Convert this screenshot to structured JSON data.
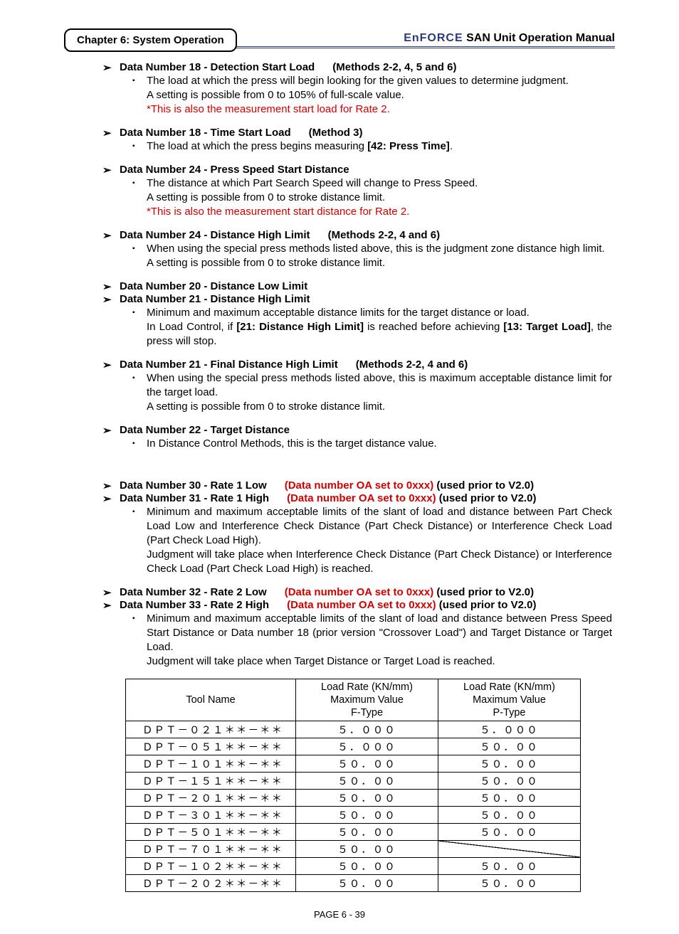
{
  "header": {
    "chapter": "Chapter 6: System Operation",
    "brand": "EnFORCE",
    "title": " SAN  Unit  Operation  Manual"
  },
  "entries": [
    {
      "heads": [
        {
          "label": "Data Number 18 - Detection Start Load",
          "qual": "(Methods 2-2, 4, 5 and 6)"
        }
      ],
      "subs": [
        {
          "bullet": true,
          "html": "The load at which the press will begin looking for the given values to determine judgment."
        },
        {
          "bullet": false,
          "html": "A setting is possible from 0 to 105% of full-scale value."
        },
        {
          "bullet": false,
          "html": "<span class=\"red\">*This is also the measurement start load for Rate 2.</span>"
        }
      ]
    },
    {
      "heads": [
        {
          "label": "Data Number 18 - Time Start Load",
          "qual": "(Method 3)"
        }
      ],
      "subs": [
        {
          "bullet": true,
          "html": "The load at which the press begins measuring <b>[42: Press Time]</b>."
        }
      ]
    },
    {
      "heads": [
        {
          "label": "Data Number 24 - Press Speed Start Distance",
          "qual": ""
        }
      ],
      "subs": [
        {
          "bullet": true,
          "html": "The distance at which Part Search Speed will change to Press Speed."
        },
        {
          "bullet": false,
          "html": "A setting is possible from 0 to stroke distance limit."
        },
        {
          "bullet": false,
          "html": "<span class=\"red\">*This is also the measurement start distance for Rate 2.</span>"
        }
      ]
    },
    {
      "heads": [
        {
          "label": "Data Number 24 - Distance High Limit",
          "qual": "(Methods 2-2, 4 and 6)"
        }
      ],
      "subs": [
        {
          "bullet": true,
          "justify": true,
          "html": "When using the special press methods listed above, this is the judgment zone distance high limit."
        },
        {
          "bullet": false,
          "html": "A setting is possible from 0 to stroke distance limit."
        }
      ]
    },
    {
      "heads": [
        {
          "label": "Data Number 20 - Distance Low Limit",
          "qual": ""
        },
        {
          "label": "Data Number 21 - Distance High Limit",
          "qual": ""
        }
      ],
      "subs": [
        {
          "bullet": true,
          "html": "Minimum and maximum acceptable distance limits for the target distance or load."
        },
        {
          "bullet": false,
          "justify": true,
          "html": "In Load Control, if <b>[21: Distance High Limit]</b> is reached before achieving <b>[13: Target Load]</b>, the press will stop."
        }
      ]
    },
    {
      "heads": [
        {
          "label": "Data Number 21 - Final Distance High Limit",
          "qual": "(Methods 2-2, 4 and 6)"
        }
      ],
      "subs": [
        {
          "bullet": true,
          "justify": true,
          "html": "When using the special press methods listed above, this is maximum acceptable distance limit for the target load."
        },
        {
          "bullet": false,
          "html": "A setting is possible from 0 to stroke distance limit."
        }
      ]
    },
    {
      "heads": [
        {
          "label": "Data Number 22 - Target Distance",
          "qual": ""
        }
      ],
      "subs": [
        {
          "bullet": true,
          "html": "In Distance Control Methods, this is the target distance value."
        }
      ]
    },
    {
      "extra_gap": true,
      "heads": [
        {
          "label": "Data Number 30 - Rate 1 Low",
          "red_qual": "(Data number OA set to 0xxx)",
          "qual2": "(used prior to V2.0)"
        },
        {
          "label": "Data Number 31 - Rate 1 High",
          "red_qual": "(Data number OA set to 0xxx)",
          "qual2": "(used prior to V2.0)"
        }
      ],
      "subs": [
        {
          "bullet": true,
          "justify": true,
          "html": "Minimum and maximum acceptable limits of the slant of load and distance between Part Check Load Low and Interference Check Distance (Part Check Distance) or Interference Check Load (Part Check Load High)."
        },
        {
          "bullet": false,
          "justify": true,
          "html": "Judgment will take place when Interference Check Distance (Part Check Distance) or Interference Check Load (Part Check Load High) is reached."
        }
      ]
    },
    {
      "heads": [
        {
          "label": "Data Number 32 - Rate 2 Low",
          "red_qual": "(Data number OA set to 0xxx)",
          "qual2": "(used prior to V2.0)"
        },
        {
          "label": "Data Number 33 - Rate 2 High",
          "red_qual": "(Data number OA set to 0xxx)",
          "qual2": "(used prior to V2.0)"
        }
      ],
      "subs": [
        {
          "bullet": true,
          "justify": true,
          "html": "Minimum and maximum acceptable limits of the slant of load and distance between Press Speed Start Distance or Data number 18 (prior version \"Crossover Load\") and Target Distance or Target Load."
        },
        {
          "bullet": false,
          "html": "Judgment will take place when Target Distance or Target Load is reached."
        }
      ]
    }
  ],
  "table": {
    "headers": [
      "Tool Name",
      "Load Rate (KN/mm)\nMaximum Value\nF-Type",
      "Load Rate (KN/mm)\nMaximum Value\nP-Type"
    ],
    "rows": [
      [
        "ＤＰＴ－０２１＊＊－＊＊",
        "５．０００",
        "５．０００"
      ],
      [
        "ＤＰＴ－０５１＊＊－＊＊",
        "５．０００",
        "５０．００"
      ],
      [
        "ＤＰＴ－１０１＊＊－＊＊",
        "５０．００",
        "５０．００"
      ],
      [
        "ＤＰＴ－１５１＊＊－＊＊",
        "５０．００",
        "５０．００"
      ],
      [
        "ＤＰＴ－２０１＊＊－＊＊",
        "５０．００",
        "５０．００"
      ],
      [
        "ＤＰＴ－３０１＊＊－＊＊",
        "５０．００",
        "５０．００"
      ],
      [
        "ＤＰＴ－５０１＊＊－＊＊",
        "５０．００",
        "５０．００"
      ],
      [
        "ＤＰＴ－７０１＊＊－＊＊",
        "５０．００",
        "DIAG"
      ],
      [
        "ＤＰＴ－１０２＊＊－＊＊",
        "５０．００",
        "５０．００"
      ],
      [
        "ＤＰＴ－２０２＊＊－＊＊",
        "５０．００",
        "５０．００"
      ]
    ]
  },
  "footer": "PAGE 6 - 39",
  "glyphs": {
    "arrow": "➢",
    "square": "▪"
  }
}
